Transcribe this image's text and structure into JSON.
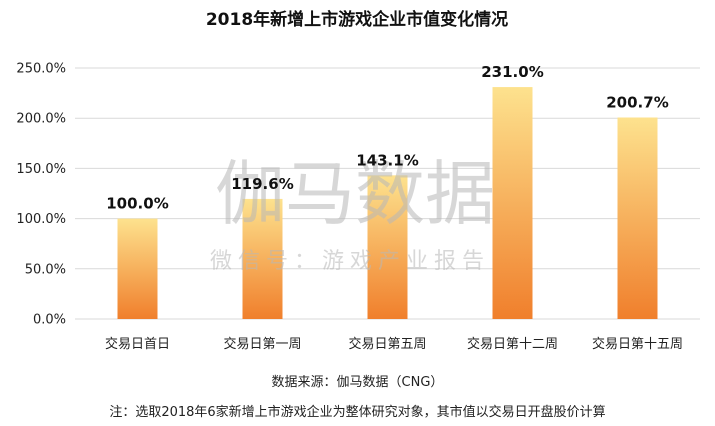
{
  "chart_data": {
    "type": "bar",
    "title": "2018年新增上市游戏企业市值变化情况",
    "categories": [
      "交易日首日",
      "交易日第一周",
      "交易日第五周",
      "交易日第十二周",
      "交易日第十五周"
    ],
    "values": [
      100.0,
      119.6,
      143.1,
      231.0,
      200.7
    ],
    "data_labels": [
      "100.0%",
      "119.6%",
      "143.1%",
      "231.0%",
      "200.7%"
    ],
    "y_ticks": [
      "0.0%",
      "50.0%",
      "100.0%",
      "150.0%",
      "200.0%",
      "250.0%"
    ],
    "ylim": [
      0,
      250
    ],
    "grid": true,
    "legend": "none",
    "bar_gradient": {
      "top": "#fde28e",
      "bottom": "#f07f2c"
    }
  },
  "watermark": {
    "main": "伽马数据",
    "sub": "微信号：游戏产业报告"
  },
  "source": "数据来源：伽马数据（CNG）",
  "note": "注：选取2018年6家新增上市游戏企业为整体研究对象，其市值以交易日开盘股价计算"
}
